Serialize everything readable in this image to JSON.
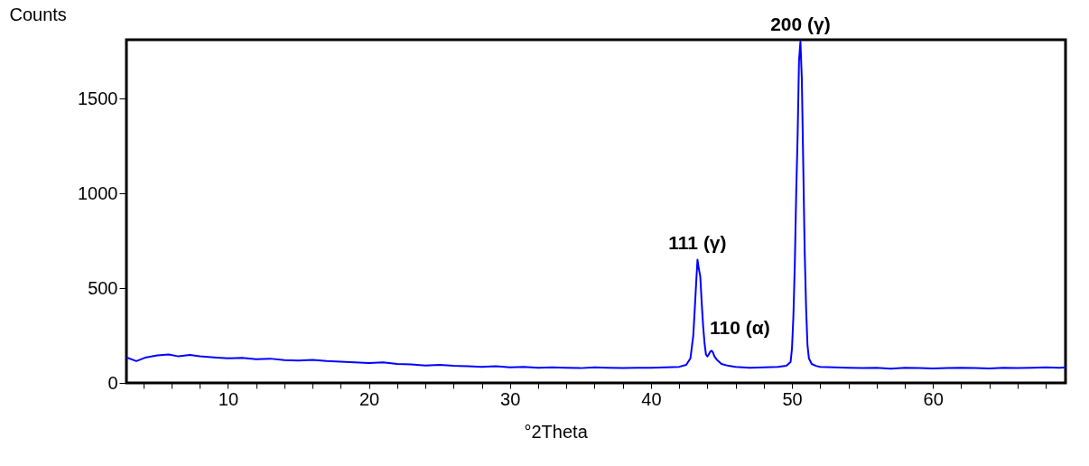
{
  "chart_data": {
    "type": "line",
    "xlabel": "°2Theta",
    "ylabel": "Counts",
    "x": [
      2.8,
      3.5,
      4.2,
      5.0,
      5.8,
      6.5,
      7.3,
      8.0,
      9.0,
      10.0,
      11.0,
      12.0,
      13.0,
      14.0,
      15.0,
      16.0,
      17.0,
      18.0,
      19.0,
      20.0,
      21.0,
      22.0,
      23.0,
      24.0,
      25.0,
      26.0,
      27.0,
      28.0,
      29.0,
      30.0,
      31.0,
      32.0,
      33.0,
      34.0,
      35.0,
      36.0,
      37.0,
      38.0,
      39.0,
      40.0,
      41.0,
      42.0,
      42.5,
      42.8,
      43.0,
      43.1,
      43.2,
      43.3,
      43.4,
      43.5,
      43.6,
      43.7,
      43.8,
      43.9,
      44.0,
      44.1,
      44.2,
      44.3,
      44.4,
      44.5,
      44.7,
      45.0,
      45.5,
      46.0,
      47.0,
      48.0,
      49.0,
      49.6,
      49.9,
      50.0,
      50.1,
      50.2,
      50.3,
      50.4,
      50.5,
      50.6,
      50.7,
      50.8,
      50.9,
      51.0,
      51.1,
      51.2,
      51.4,
      51.7,
      52.0,
      53.0,
      54.0,
      55.0,
      56.0,
      57.0,
      58.0,
      59.0,
      60.0,
      61.0,
      62.0,
      63.0,
      64.0,
      65.0,
      66.0,
      67.0,
      68.0,
      69.0,
      69.4
    ],
    "series": [
      {
        "color": "#0000ff",
        "values": [
          135,
          115,
          135,
          145,
          150,
          140,
          148,
          140,
          135,
          130,
          132,
          125,
          128,
          120,
          118,
          122,
          115,
          112,
          108,
          105,
          108,
          100,
          98,
          92,
          95,
          90,
          88,
          85,
          88,
          82,
          85,
          80,
          82,
          80,
          78,
          82,
          80,
          78,
          80,
          80,
          82,
          85,
          95,
          130,
          250,
          380,
          520,
          650,
          600,
          560,
          420,
          300,
          210,
          150,
          140,
          150,
          165,
          170,
          160,
          140,
          120,
          100,
          90,
          85,
          80,
          82,
          85,
          90,
          110,
          180,
          350,
          620,
          1000,
          1300,
          1700,
          1800,
          1600,
          1150,
          700,
          400,
          200,
          130,
          100,
          90,
          85,
          82,
          80,
          78,
          80,
          75,
          80,
          78,
          76,
          78,
          80,
          78,
          76,
          80,
          78,
          80,
          82,
          80,
          82
        ]
      }
    ],
    "xlim": [
      2.8,
      69.4
    ],
    "ylim": [
      0,
      1810
    ],
    "xticks": [
      {
        "value": 4,
        "label": null
      },
      {
        "value": 6,
        "label": null
      },
      {
        "value": 8,
        "label": null
      },
      10,
      {
        "value": 12,
        "label": null
      },
      {
        "value": 14,
        "label": null
      },
      {
        "value": 16,
        "label": null
      },
      {
        "value": 18,
        "label": null
      },
      20,
      {
        "value": 22,
        "label": null
      },
      {
        "value": 24,
        "label": null
      },
      {
        "value": 26,
        "label": null
      },
      {
        "value": 28,
        "label": null
      },
      30,
      {
        "value": 32,
        "label": null
      },
      {
        "value": 34,
        "label": null
      },
      {
        "value": 36,
        "label": null
      },
      {
        "value": 38,
        "label": null
      },
      40,
      {
        "value": 42,
        "label": null
      },
      {
        "value": 44,
        "label": null
      },
      {
        "value": 46,
        "label": null
      },
      {
        "value": 48,
        "label": null
      },
      50,
      {
        "value": 52,
        "label": null
      },
      {
        "value": 54,
        "label": null
      },
      {
        "value": 56,
        "label": null
      },
      {
        "value": 58,
        "label": null
      },
      60,
      {
        "value": 62,
        "label": null
      },
      {
        "value": 64,
        "label": null
      },
      {
        "value": 66,
        "label": null
      },
      {
        "value": 68,
        "label": null
      }
    ],
    "yticks": [
      0,
      500,
      1000,
      1500
    ],
    "grid": false,
    "legend": false,
    "marker": "none",
    "line_style": "solid",
    "annotations": [
      {
        "text": "200 (γ)",
        "x": 50.6,
        "y": 1800
      },
      {
        "text": "111 (γ)",
        "x": 43.3,
        "y": 650
      },
      {
        "text": "110 (α)",
        "x": 44.3,
        "y": 170
      }
    ]
  }
}
